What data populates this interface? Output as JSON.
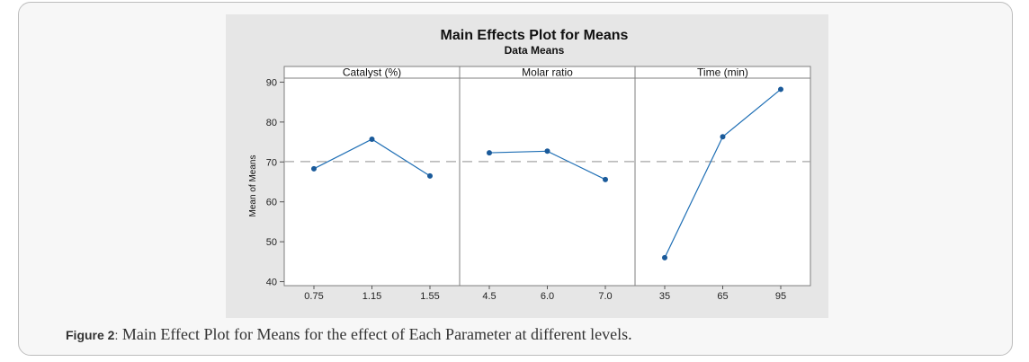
{
  "figure": {
    "caption_label": "Figure 2",
    "caption_sep": ":",
    "caption_text": " Main Effect Plot for Means for the effect of Each Parameter at different levels."
  },
  "chart_data": {
    "type": "line",
    "title": "Main Effects Plot for Means",
    "subtitle": "Data Means",
    "ylabel": "Mean of Means",
    "ylim": [
      39,
      91
    ],
    "yticks": [
      40,
      50,
      60,
      70,
      80,
      90
    ],
    "reference_line": 70.1,
    "colors": {
      "line": "#1f6fb5",
      "marker": "#1a5a9a",
      "ref": "#a6a6a6"
    },
    "panels": [
      {
        "name": "Catalyst (%)",
        "categories": [
          "0.75",
          "1.15",
          "1.55"
        ],
        "values": [
          68.3,
          75.7,
          66.5
        ]
      },
      {
        "name": "Molar ratio",
        "categories": [
          "4.5",
          "6.0",
          "7.0"
        ],
        "values": [
          72.3,
          72.7,
          65.6
        ]
      },
      {
        "name": "Time (min)",
        "categories": [
          "35",
          "65",
          "95"
        ],
        "values": [
          46.0,
          76.3,
          88.2
        ]
      }
    ]
  }
}
